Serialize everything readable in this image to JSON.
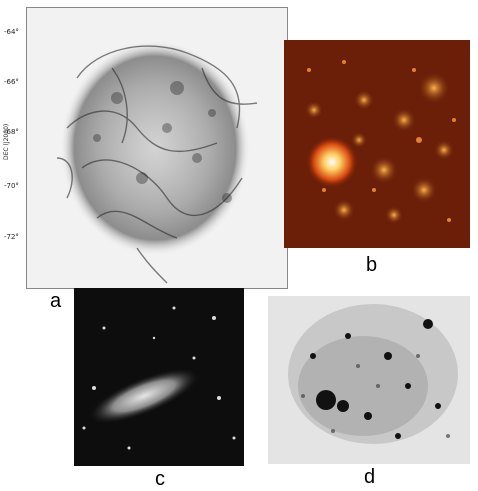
{
  "panels": {
    "a": {
      "label": "a",
      "axis_title": "DEC (J2000)",
      "ticks": [
        "-64°",
        "-66°",
        "-68°",
        "-70°",
        "-72°"
      ]
    },
    "b": {
      "label": "b"
    },
    "c": {
      "label": "c"
    },
    "d": {
      "label": "d"
    }
  },
  "colors": {
    "panel_b_bg": "#6b1f08",
    "panel_c_bg": "#0d0d0d",
    "panel_a_bg": "#f2f2f2",
    "panel_d_bg": "#e4e4e4"
  }
}
